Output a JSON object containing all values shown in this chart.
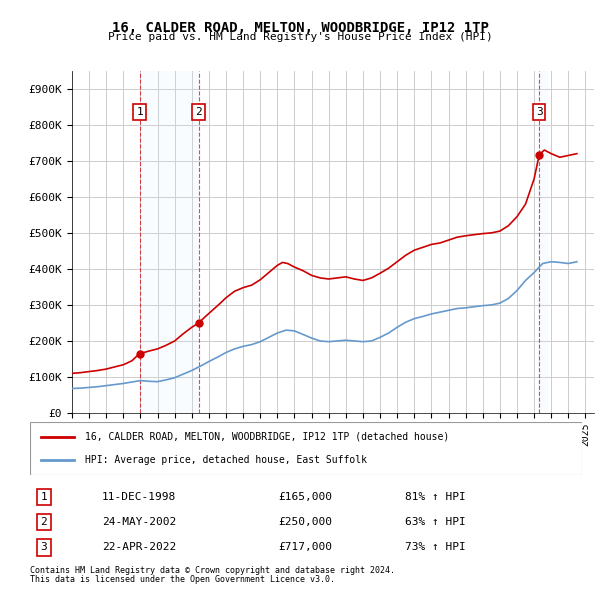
{
  "title": "16, CALDER ROAD, MELTON, WOODBRIDGE, IP12 1TP",
  "subtitle": "Price paid vs. HM Land Registry's House Price Index (HPI)",
  "ylabel_ticks": [
    "£0",
    "£100K",
    "£200K",
    "£300K",
    "£400K",
    "£500K",
    "£600K",
    "£700K",
    "£800K",
    "£900K"
  ],
  "ytick_values": [
    0,
    100000,
    200000,
    300000,
    400000,
    500000,
    600000,
    700000,
    800000,
    900000
  ],
  "ylim": [
    0,
    950000
  ],
  "xmin": 1995.0,
  "xmax": 2025.5,
  "transactions": [
    {
      "num": 1,
      "year": 1998.95,
      "price": 165000,
      "date": "11-DEC-1998",
      "pct": "81%",
      "direction": "↑"
    },
    {
      "num": 2,
      "year": 2002.4,
      "price": 250000,
      "date": "24-MAY-2002",
      "pct": "63%",
      "direction": "↑"
    },
    {
      "num": 3,
      "year": 2022.3,
      "price": 717000,
      "date": "22-APR-2022",
      "pct": "73%",
      "direction": "↑"
    }
  ],
  "red_line_color": "#cc0000",
  "blue_line_color": "#6699cc",
  "shade_color": "#ddeeff",
  "vline_color": "#cc0000",
  "grid_color": "#cccccc",
  "background_color": "#ffffff",
  "legend_label_red": "16, CALDER ROAD, MELTON, WOODBRIDGE, IP12 1TP (detached house)",
  "legend_label_blue": "HPI: Average price, detached house, East Suffolk",
  "footnote1": "Contains HM Land Registry data © Crown copyright and database right 2024.",
  "footnote2": "This data is licensed under the Open Government Licence v3.0.",
  "red_x": [
    1995.0,
    1995.5,
    1996.0,
    1996.5,
    1997.0,
    1997.5,
    1998.0,
    1998.5,
    1998.95,
    1999.2,
    1999.5,
    2000.0,
    2000.5,
    2001.0,
    2001.5,
    2002.0,
    2002.4,
    2002.8,
    2003.2,
    2003.6,
    2004.0,
    2004.5,
    2005.0,
    2005.5,
    2006.0,
    2006.5,
    2007.0,
    2007.3,
    2007.6,
    2008.0,
    2008.5,
    2009.0,
    2009.5,
    2010.0,
    2010.5,
    2011.0,
    2011.5,
    2012.0,
    2012.5,
    2013.0,
    2013.5,
    2014.0,
    2014.5,
    2015.0,
    2015.5,
    2016.0,
    2016.5,
    2017.0,
    2017.5,
    2018.0,
    2018.5,
    2019.0,
    2019.5,
    2020.0,
    2020.5,
    2021.0,
    2021.5,
    2022.0,
    2022.3,
    2022.6,
    2023.0,
    2023.5,
    2024.0,
    2024.5
  ],
  "red_y": [
    110000,
    112000,
    115000,
    118000,
    122000,
    128000,
    134000,
    145000,
    165000,
    168000,
    172000,
    178000,
    188000,
    200000,
    220000,
    238000,
    250000,
    268000,
    285000,
    302000,
    320000,
    338000,
    348000,
    355000,
    370000,
    390000,
    410000,
    418000,
    415000,
    405000,
    395000,
    382000,
    375000,
    372000,
    375000,
    378000,
    372000,
    368000,
    375000,
    388000,
    402000,
    420000,
    438000,
    452000,
    460000,
    468000,
    472000,
    480000,
    488000,
    492000,
    495000,
    498000,
    500000,
    505000,
    520000,
    545000,
    580000,
    650000,
    717000,
    730000,
    720000,
    710000,
    715000,
    720000
  ],
  "blue_x": [
    1995.0,
    1995.5,
    1996.0,
    1996.5,
    1997.0,
    1997.5,
    1998.0,
    1998.5,
    1999.0,
    1999.5,
    2000.0,
    2000.5,
    2001.0,
    2001.5,
    2002.0,
    2002.5,
    2003.0,
    2003.5,
    2004.0,
    2004.5,
    2005.0,
    2005.5,
    2006.0,
    2006.5,
    2007.0,
    2007.5,
    2008.0,
    2008.5,
    2009.0,
    2009.5,
    2010.0,
    2010.5,
    2011.0,
    2011.5,
    2012.0,
    2012.5,
    2013.0,
    2013.5,
    2014.0,
    2014.5,
    2015.0,
    2015.5,
    2016.0,
    2016.5,
    2017.0,
    2017.5,
    2018.0,
    2018.5,
    2019.0,
    2019.5,
    2020.0,
    2020.5,
    2021.0,
    2021.5,
    2022.0,
    2022.5,
    2023.0,
    2023.5,
    2024.0,
    2024.5
  ],
  "blue_y": [
    68000,
    69000,
    71000,
    73000,
    76000,
    79000,
    82000,
    86000,
    90000,
    88000,
    87000,
    92000,
    98000,
    108000,
    118000,
    130000,
    143000,
    155000,
    168000,
    178000,
    185000,
    190000,
    198000,
    210000,
    222000,
    230000,
    228000,
    218000,
    208000,
    200000,
    198000,
    200000,
    202000,
    200000,
    198000,
    200000,
    210000,
    222000,
    238000,
    252000,
    262000,
    268000,
    275000,
    280000,
    285000,
    290000,
    292000,
    295000,
    298000,
    300000,
    305000,
    318000,
    340000,
    368000,
    390000,
    415000,
    420000,
    418000,
    415000,
    420000
  ]
}
